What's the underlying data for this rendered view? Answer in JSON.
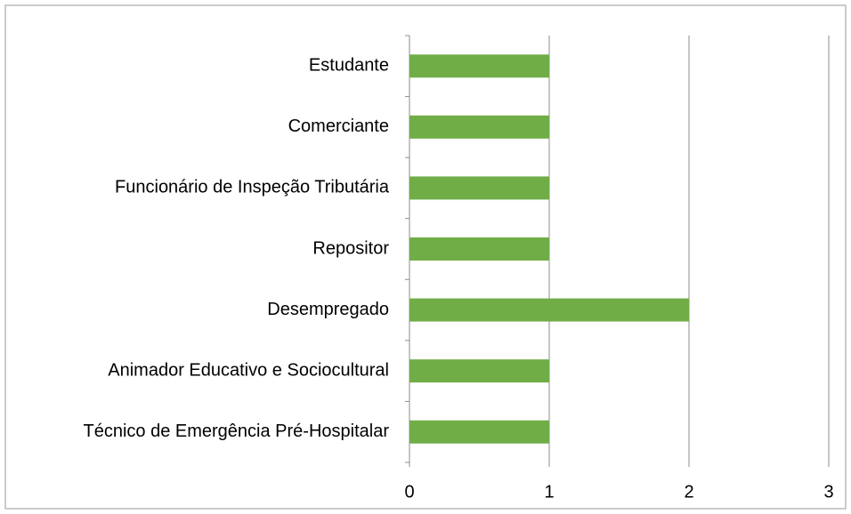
{
  "chart_data": {
    "type": "hbar",
    "categories": [
      "Estudante",
      "Comerciante",
      "Funcionário de Inspeção Tributária",
      "Repositor",
      "Desempregado",
      "Animador Educativo e Sociocultural",
      "Técnico de Emergência Pré-Hospitalar"
    ],
    "values": [
      1,
      1,
      1,
      1,
      2,
      1,
      1
    ],
    "color": "#70ad47",
    "xlim": [
      0,
      3
    ],
    "xticks": [
      0,
      1,
      2,
      3
    ],
    "grid": true
  }
}
